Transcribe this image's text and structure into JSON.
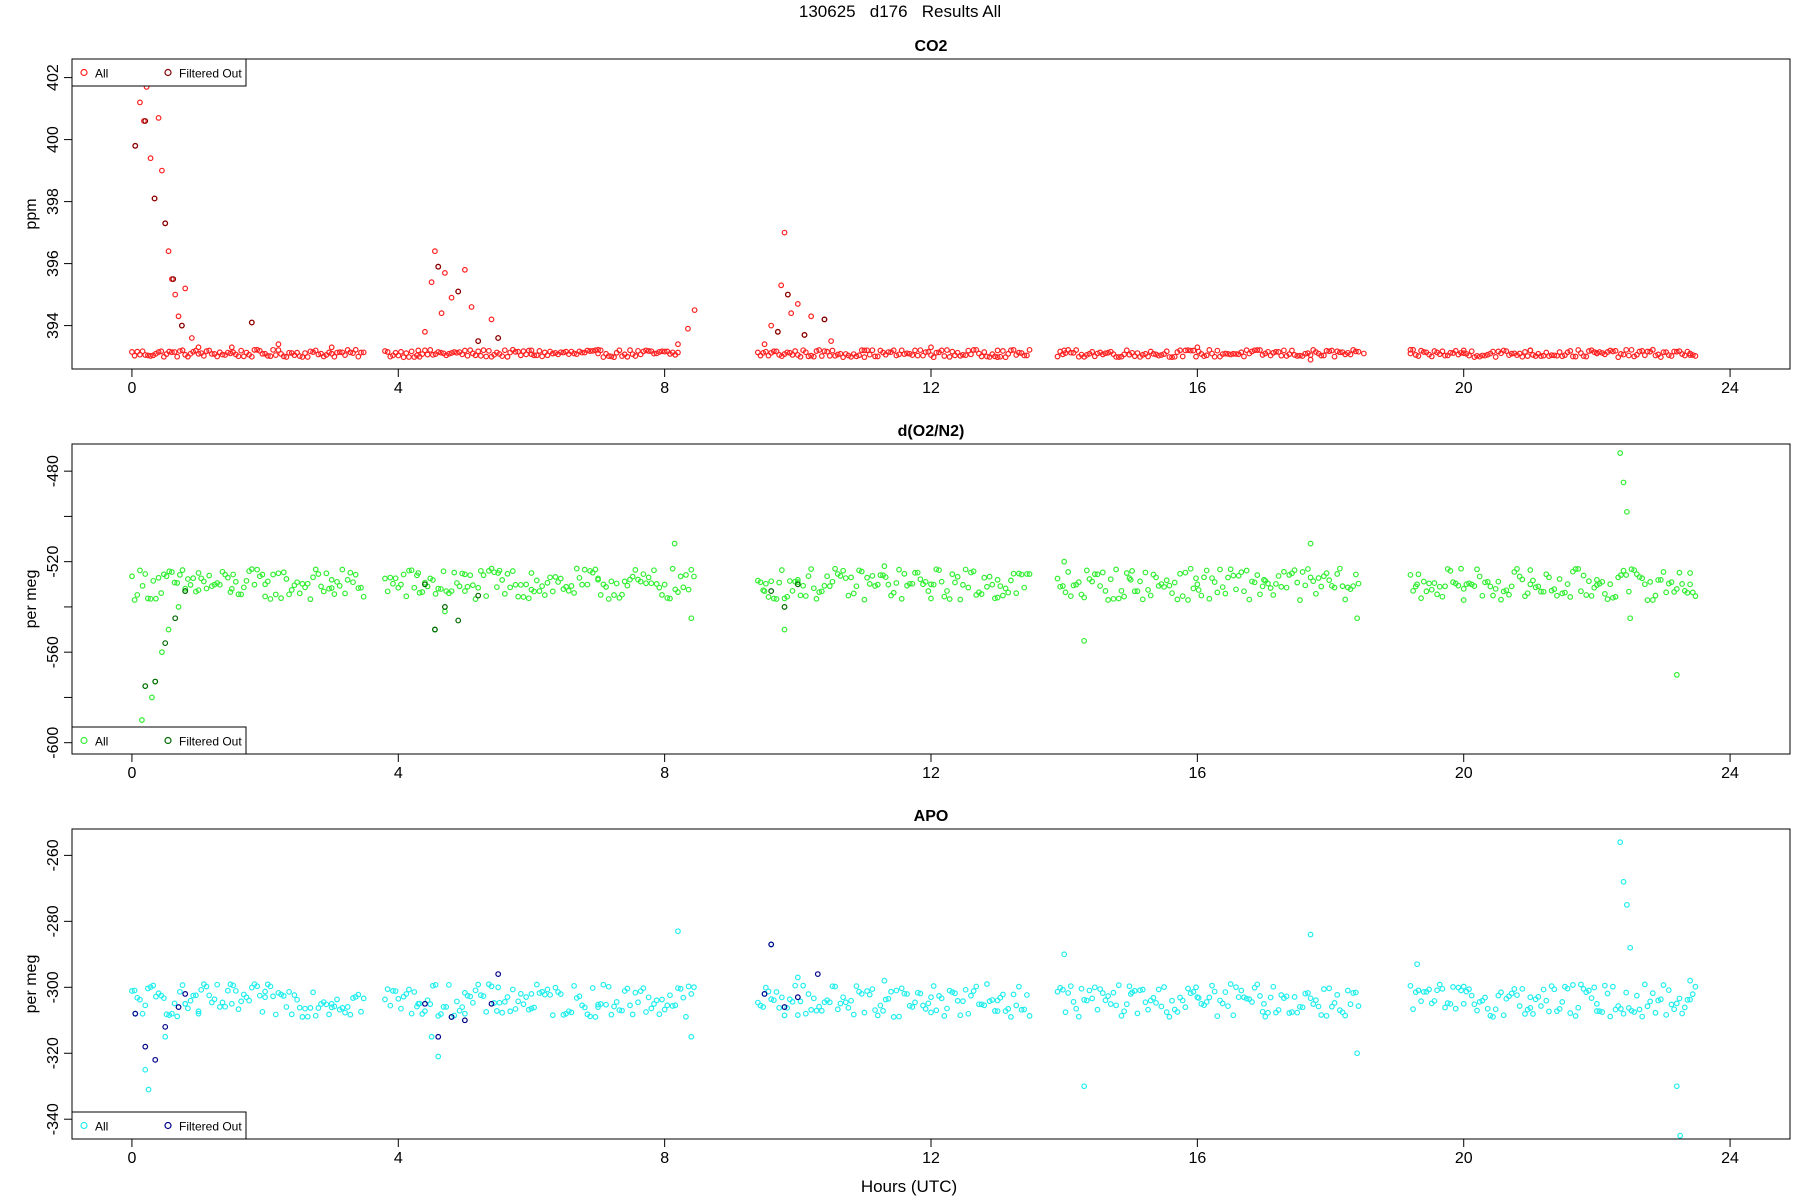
{
  "page": {
    "title": "130625   d176   Results All",
    "xlabel": "Hours (UTC)"
  },
  "chart_data": [
    {
      "type": "scatter",
      "title": "CO2",
      "ylabel": "ppm",
      "xlim": [
        -0.9,
        24.9
      ],
      "ylim": [
        392.6,
        402.6
      ],
      "xticks": [
        0,
        4,
        8,
        12,
        16,
        20,
        24
      ],
      "yticks": [
        394,
        396,
        398,
        400,
        402
      ],
      "legend": {
        "position": "top-left",
        "labels": [
          "All",
          "Filtered Out"
        ]
      },
      "series": [
        {
          "name": "All",
          "color": "#ff2020",
          "points": [
            [
              0.05,
              399.8
            ],
            [
              0.12,
              401.2
            ],
            [
              0.18,
              400.6
            ],
            [
              0.22,
              401.7
            ],
            [
              0.28,
              399.4
            ],
            [
              0.34,
              398.1
            ],
            [
              0.4,
              400.7
            ],
            [
              0.45,
              399.0
            ],
            [
              0.5,
              397.3
            ],
            [
              0.55,
              396.4
            ],
            [
              0.6,
              395.5
            ],
            [
              0.65,
              395.0
            ],
            [
              0.7,
              394.3
            ],
            [
              0.75,
              394.0
            ],
            [
              0.8,
              395.2
            ],
            [
              0.9,
              393.6
            ],
            [
              1.0,
              393.3
            ],
            [
              1.5,
              393.3
            ],
            [
              1.8,
              394.1
            ],
            [
              2.2,
              393.4
            ],
            [
              3.0,
              393.3
            ],
            [
              4.3,
              393.2
            ],
            [
              4.4,
              393.8
            ],
            [
              4.5,
              395.4
            ],
            [
              4.55,
              396.4
            ],
            [
              4.6,
              395.9
            ],
            [
              4.65,
              394.4
            ],
            [
              4.7,
              395.7
            ],
            [
              4.8,
              394.9
            ],
            [
              4.9,
              395.1
            ],
            [
              5.0,
              395.8
            ],
            [
              5.1,
              394.6
            ],
            [
              5.2,
              393.5
            ],
            [
              5.4,
              394.2
            ],
            [
              5.5,
              393.6
            ],
            [
              6.0,
              393.2
            ],
            [
              7.0,
              393.1
            ],
            [
              8.2,
              393.4
            ],
            [
              8.35,
              393.9
            ],
            [
              8.45,
              394.5
            ],
            [
              9.5,
              393.4
            ],
            [
              9.6,
              394.0
            ],
            [
              9.7,
              393.8
            ],
            [
              9.75,
              395.3
            ],
            [
              9.8,
              397.0
            ],
            [
              9.85,
              395.0
            ],
            [
              9.9,
              394.4
            ],
            [
              10.0,
              394.7
            ],
            [
              10.1,
              393.7
            ],
            [
              10.2,
              394.3
            ],
            [
              10.4,
              394.2
            ],
            [
              10.5,
              393.5
            ],
            [
              11.0,
              393.2
            ],
            [
              12.0,
              393.3
            ],
            [
              13.0,
              393.2
            ],
            [
              14.0,
              393.2
            ],
            [
              16.0,
              393.3
            ],
            [
              17.7,
              392.9
            ],
            [
              18.5,
              393.1
            ],
            [
              19.2,
              393.1
            ],
            [
              20.0,
              393.2
            ],
            [
              21.0,
              393.2
            ],
            [
              22.0,
              393.1
            ],
            [
              23.4,
              393.1
            ]
          ]
        },
        {
          "name": "Filtered Out",
          "color": "#800000",
          "points": [
            [
              0.05,
              399.8
            ],
            [
              0.2,
              400.6
            ],
            [
              0.34,
              398.1
            ],
            [
              0.5,
              397.3
            ],
            [
              0.62,
              395.5
            ],
            [
              0.75,
              394.0
            ],
            [
              1.8,
              394.1
            ],
            [
              4.6,
              395.9
            ],
            [
              4.9,
              395.1
            ],
            [
              5.2,
              393.5
            ],
            [
              5.5,
              393.6
            ],
            [
              9.7,
              393.8
            ],
            [
              9.85,
              395.0
            ],
            [
              10.1,
              393.7
            ],
            [
              10.4,
              394.2
            ]
          ]
        }
      ],
      "segments": [
        [
          0.0,
          3.5
        ],
        [
          3.8,
          8.2
        ],
        [
          9.4,
          13.5
        ],
        [
          13.9,
          18.45
        ],
        [
          19.2,
          23.5
        ]
      ],
      "baseline_approx": 393.1
    },
    {
      "type": "scatter",
      "title": "d(O2/N2)",
      "ylabel": "per meg",
      "xlim": [
        -0.9,
        24.9
      ],
      "ylim": [
        -605,
        -468
      ],
      "xticks": [
        0,
        4,
        8,
        12,
        16,
        20,
        24
      ],
      "yticks": [
        -600,
        -580,
        -560,
        -540,
        -520,
        -500,
        -480
      ],
      "yticklabels": [
        "-600",
        "",
        "-560",
        "",
        "-520",
        "",
        "-480"
      ],
      "legend": {
        "position": "bottom-left",
        "labels": [
          "All",
          "Filtered Out"
        ]
      },
      "series": [
        {
          "name": "All",
          "color": "#33ee33",
          "points": [
            [
              0.05,
              -598
            ],
            [
              0.15,
              -590
            ],
            [
              0.2,
              -575
            ],
            [
              0.3,
              -580
            ],
            [
              0.35,
              -573
            ],
            [
              0.45,
              -560
            ],
            [
              0.55,
              -550
            ],
            [
              0.7,
              -540
            ],
            [
              0.8,
              -533
            ],
            [
              1.0,
              -525
            ],
            [
              1.5,
              -532
            ],
            [
              2.0,
              -530
            ],
            [
              3.0,
              -528
            ],
            [
              4.3,
              -525
            ],
            [
              4.55,
              -550
            ],
            [
              4.7,
              -542
            ],
            [
              5.0,
              -533
            ],
            [
              5.5,
              -525
            ],
            [
              6.0,
              -525
            ],
            [
              7.0,
              -528
            ],
            [
              8.15,
              -512
            ],
            [
              8.4,
              -545
            ],
            [
              9.5,
              -533
            ],
            [
              9.8,
              -550
            ],
            [
              10.0,
              -528
            ],
            [
              11.3,
              -522
            ],
            [
              12.0,
              -530
            ],
            [
              13.0,
              -528
            ],
            [
              14.0,
              -520
            ],
            [
              14.3,
              -555
            ],
            [
              15.0,
              -528
            ],
            [
              16.0,
              -530
            ],
            [
              17.0,
              -528
            ],
            [
              17.7,
              -512
            ],
            [
              18.4,
              -545
            ],
            [
              19.3,
              -530
            ],
            [
              20.0,
              -532
            ],
            [
              21.0,
              -530
            ],
            [
              22.0,
              -528
            ],
            [
              22.35,
              -472
            ],
            [
              22.4,
              -485
            ],
            [
              22.45,
              -498
            ],
            [
              22.5,
              -545
            ],
            [
              23.2,
              -570
            ],
            [
              23.4,
              -525
            ]
          ]
        },
        {
          "name": "Filtered Out",
          "color": "#006600",
          "points": [
            [
              0.05,
              -598
            ],
            [
              0.2,
              -575
            ],
            [
              0.35,
              -573
            ],
            [
              0.5,
              -556
            ],
            [
              0.65,
              -545
            ],
            [
              0.8,
              -533
            ],
            [
              4.4,
              -530
            ],
            [
              4.55,
              -550
            ],
            [
              4.7,
              -540
            ],
            [
              4.9,
              -546
            ],
            [
              5.2,
              -535
            ],
            [
              9.6,
              -533
            ],
            [
              9.8,
              -540
            ],
            [
              10.0,
              -530
            ]
          ]
        }
      ],
      "segments": [
        [
          0.0,
          3.5
        ],
        [
          3.8,
          8.45
        ],
        [
          9.4,
          13.5
        ],
        [
          13.9,
          18.45
        ],
        [
          19.2,
          23.5
        ]
      ],
      "baseline_approx": -530
    },
    {
      "type": "scatter",
      "title": "APO",
      "ylabel": "per meg",
      "xlim": [
        -0.9,
        24.9
      ],
      "ylim": [
        -346,
        -252
      ],
      "xticks": [
        0,
        4,
        8,
        12,
        16,
        20,
        24
      ],
      "yticks": [
        -340,
        -320,
        -300,
        -280,
        -260
      ],
      "legend": {
        "position": "bottom-left",
        "labels": [
          "All",
          "Filtered Out"
        ]
      },
      "series": [
        {
          "name": "All",
          "color": "#22eeee",
          "points": [
            [
              0.05,
              -308
            ],
            [
              0.2,
              -325
            ],
            [
              0.25,
              -331
            ],
            [
              0.5,
              -315
            ],
            [
              0.8,
              -305
            ],
            [
              1.0,
              -308
            ],
            [
              1.5,
              -305
            ],
            [
              2.0,
              -303
            ],
            [
              3.0,
              -305
            ],
            [
              4.3,
              -305
            ],
            [
              4.5,
              -315
            ],
            [
              4.6,
              -321
            ],
            [
              5.0,
              -308
            ],
            [
              5.5,
              -300
            ],
            [
              6.0,
              -302
            ],
            [
              7.0,
              -306
            ],
            [
              8.2,
              -283
            ],
            [
              8.4,
              -315
            ],
            [
              9.5,
              -302
            ],
            [
              9.6,
              -287
            ],
            [
              10.0,
              -297
            ],
            [
              11.3,
              -298
            ],
            [
              12.0,
              -303
            ],
            [
              13.0,
              -304
            ],
            [
              14.0,
              -290
            ],
            [
              14.3,
              -330
            ],
            [
              15.0,
              -302
            ],
            [
              16.0,
              -303
            ],
            [
              17.0,
              -305
            ],
            [
              17.7,
              -284
            ],
            [
              18.4,
              -320
            ],
            [
              19.3,
              -293
            ],
            [
              20.0,
              -305
            ],
            [
              21.0,
              -303
            ],
            [
              22.0,
              -305
            ],
            [
              22.35,
              -256
            ],
            [
              22.4,
              -268
            ],
            [
              22.45,
              -275
            ],
            [
              22.5,
              -288
            ],
            [
              23.2,
              -330
            ],
            [
              23.25,
              -345
            ],
            [
              23.4,
              -298
            ]
          ]
        },
        {
          "name": "Filtered Out",
          "color": "#000088",
          "points": [
            [
              0.05,
              -308
            ],
            [
              0.2,
              -318
            ],
            [
              0.35,
              -322
            ],
            [
              0.5,
              -312
            ],
            [
              0.7,
              -306
            ],
            [
              0.8,
              -302
            ],
            [
              4.4,
              -305
            ],
            [
              4.6,
              -315
            ],
            [
              4.8,
              -309
            ],
            [
              5.0,
              -310
            ],
            [
              5.4,
              -305
            ],
            [
              5.5,
              -296
            ],
            [
              9.5,
              -302
            ],
            [
              9.6,
              -287
            ],
            [
              9.8,
              -306
            ],
            [
              10.0,
              -303
            ],
            [
              10.3,
              -296
            ]
          ]
        }
      ],
      "segments": [
        [
          0.0,
          3.5
        ],
        [
          3.8,
          8.45
        ],
        [
          9.4,
          13.5
        ],
        [
          13.9,
          18.45
        ],
        [
          19.2,
          23.5
        ]
      ],
      "baseline_approx": -304
    }
  ]
}
